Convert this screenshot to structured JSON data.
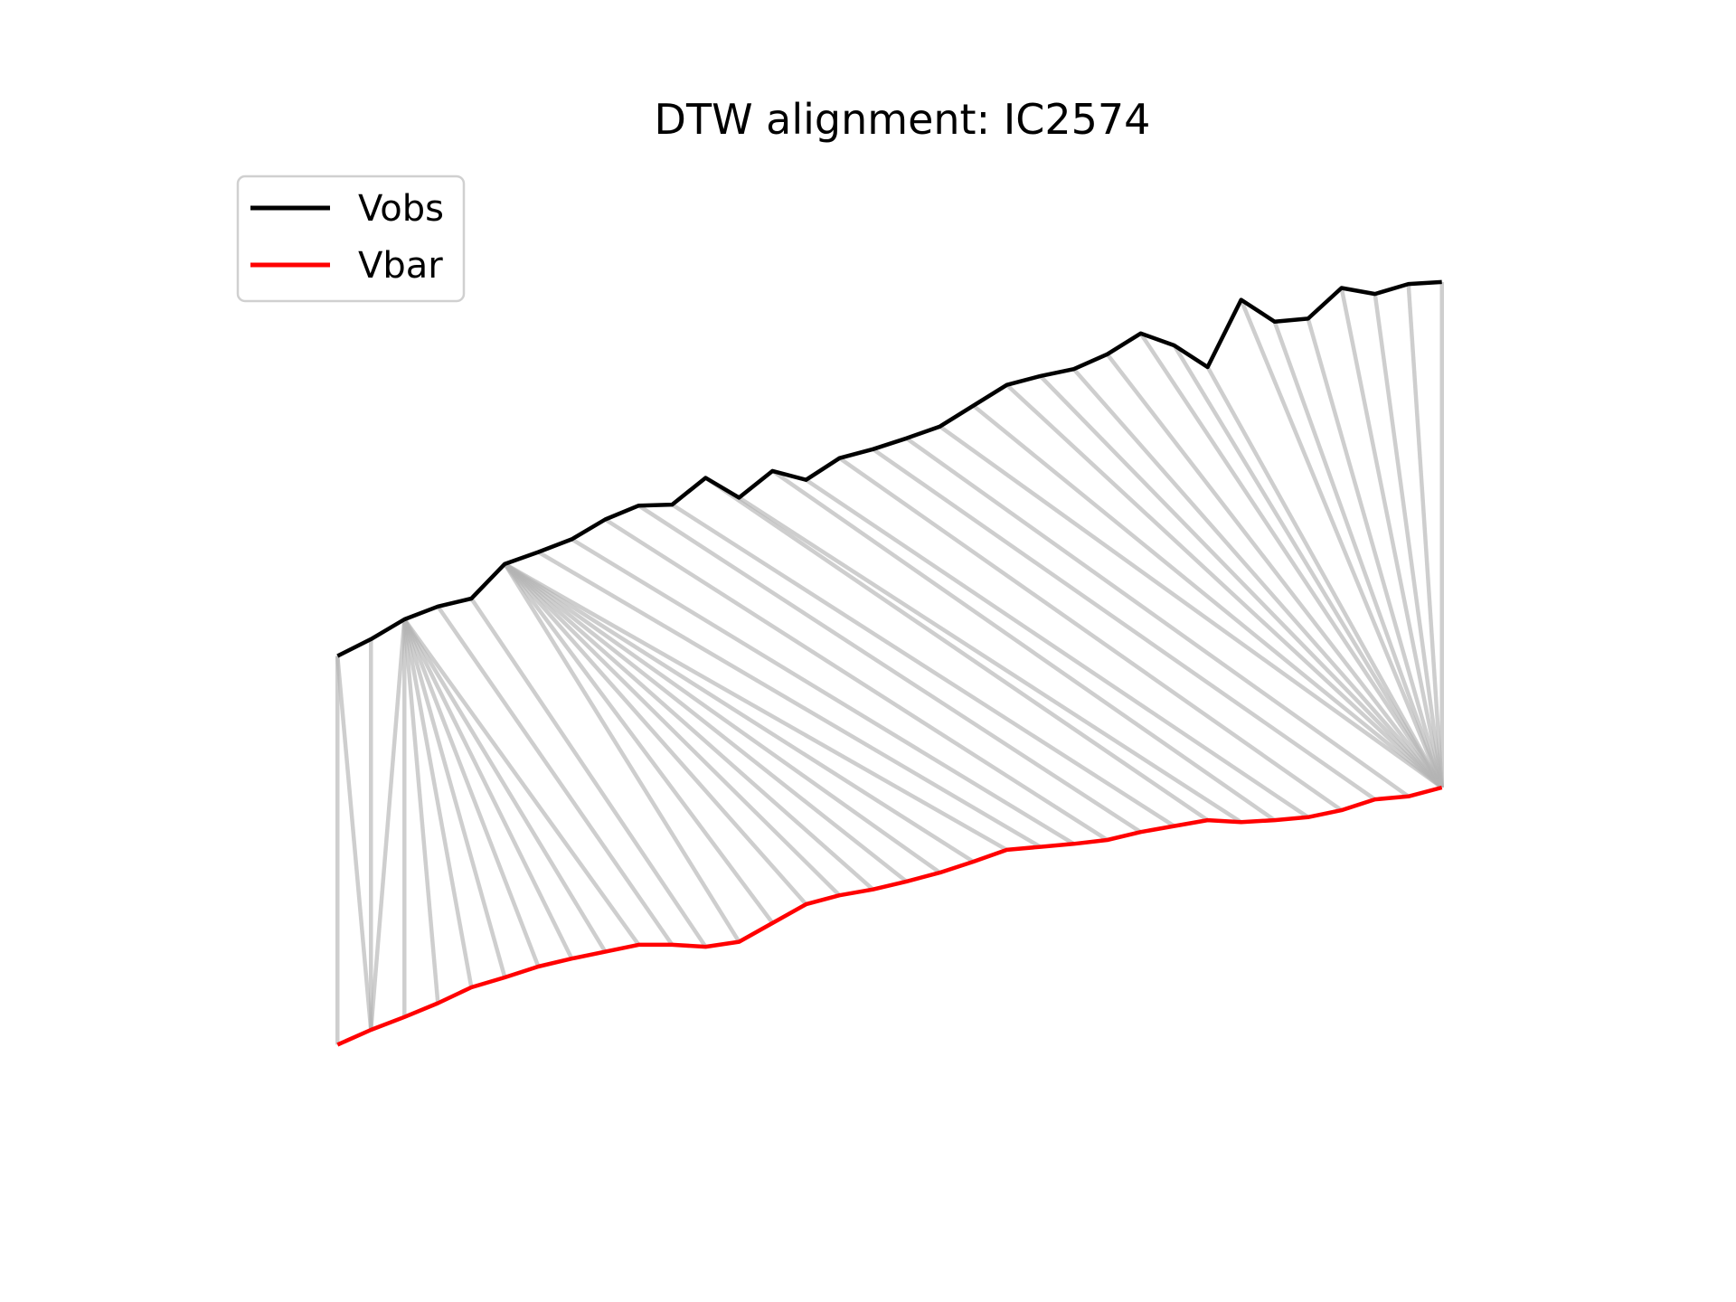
{
  "chart_data": {
    "type": "line",
    "title": "DTW alignment: IC2574",
    "xlabel": "",
    "ylabel": "",
    "axes_visible": false,
    "grid": false,
    "legend": {
      "placement": "top-left"
    },
    "x": [
      0,
      1,
      2,
      3,
      4,
      5,
      6,
      7,
      8,
      9,
      10,
      11,
      12,
      13,
      14,
      15,
      16,
      17,
      18,
      19,
      20,
      21,
      22,
      23,
      24,
      25,
      26,
      27,
      28,
      29,
      30,
      31,
      32,
      33
    ],
    "xlim": [
      -3.6,
      36.6
    ],
    "ylim": [
      0,
      1
    ],
    "series": [
      {
        "name": "Vobs",
        "color": "#000000",
        "values": [
          0.495,
          0.512,
          0.532,
          0.545,
          0.553,
          0.588,
          0.6,
          0.613,
          0.633,
          0.647,
          0.648,
          0.675,
          0.655,
          0.682,
          0.673,
          0.695,
          0.704,
          0.715,
          0.727,
          0.748,
          0.769,
          0.778,
          0.785,
          0.8,
          0.821,
          0.809,
          0.787,
          0.855,
          0.833,
          0.836,
          0.867,
          0.861,
          0.871,
          0.873
        ]
      },
      {
        "name": "Vbar",
        "color": "#ff0000",
        "values": [
          0.102,
          0.117,
          0.13,
          0.144,
          0.16,
          0.17,
          0.181,
          0.189,
          0.196,
          0.203,
          0.203,
          0.201,
          0.206,
          0.225,
          0.244,
          0.253,
          0.259,
          0.267,
          0.276,
          0.287,
          0.299,
          0.302,
          0.305,
          0.309,
          0.317,
          0.323,
          0.329,
          0.327,
          0.329,
          0.332,
          0.339,
          0.35,
          0.353,
          0.362
        ]
      }
    ],
    "alignment": {
      "color": "#b4b4b4",
      "pairs": [
        [
          0,
          0
        ],
        [
          0,
          1
        ],
        [
          1,
          1
        ],
        [
          2,
          1
        ],
        [
          2,
          2
        ],
        [
          2,
          3
        ],
        [
          2,
          4
        ],
        [
          2,
          5
        ],
        [
          2,
          6
        ],
        [
          2,
          7
        ],
        [
          2,
          8
        ],
        [
          2,
          9
        ],
        [
          3,
          10
        ],
        [
          4,
          11
        ],
        [
          5,
          12
        ],
        [
          5,
          13
        ],
        [
          5,
          14
        ],
        [
          5,
          15
        ],
        [
          5,
          16
        ],
        [
          5,
          17
        ],
        [
          5,
          18
        ],
        [
          5,
          19
        ],
        [
          5,
          20
        ],
        [
          6,
          21
        ],
        [
          7,
          22
        ],
        [
          8,
          23
        ],
        [
          9,
          24
        ],
        [
          10,
          25
        ],
        [
          11,
          26
        ],
        [
          12,
          27
        ],
        [
          13,
          28
        ],
        [
          14,
          29
        ],
        [
          15,
          30
        ],
        [
          16,
          31
        ],
        [
          17,
          32
        ],
        [
          18,
          33
        ],
        [
          19,
          33
        ],
        [
          20,
          33
        ],
        [
          21,
          33
        ],
        [
          22,
          33
        ],
        [
          23,
          33
        ],
        [
          24,
          33
        ],
        [
          25,
          33
        ],
        [
          26,
          33
        ],
        [
          27,
          33
        ],
        [
          28,
          33
        ],
        [
          29,
          33
        ],
        [
          30,
          33
        ],
        [
          31,
          33
        ],
        [
          32,
          33
        ],
        [
          33,
          33
        ]
      ]
    }
  },
  "legend_items": [
    {
      "label": "Vobs",
      "color": "#000000"
    },
    {
      "label": "Vbar",
      "color": "#ff0000"
    }
  ]
}
